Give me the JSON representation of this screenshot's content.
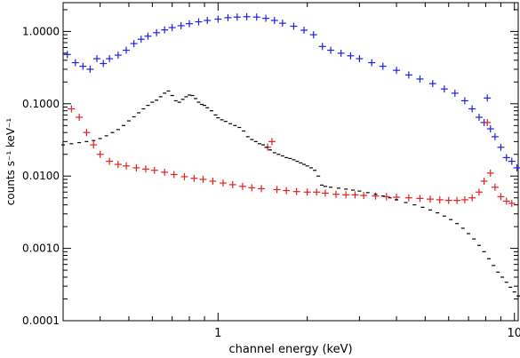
{
  "chart_data": {
    "type": "scatter",
    "title": "",
    "xlabel": "channel energy (keV)",
    "ylabel": "counts s⁻¹ keV⁻¹",
    "x_scale": "log",
    "y_scale": "log",
    "xlim": [
      0.3,
      10.3
    ],
    "ylim": [
      0.0001,
      2.5
    ],
    "x_ticks": [
      {
        "value": 1,
        "label": "1"
      },
      {
        "value": 10,
        "label": "10"
      }
    ],
    "y_ticks": [
      {
        "value": 0.0001,
        "label": "0.0001"
      },
      {
        "value": 0.001,
        "label": "0.0010"
      },
      {
        "value": 0.01,
        "label": "0.0100"
      },
      {
        "value": 0.1,
        "label": "0.1000"
      },
      {
        "value": 1,
        "label": "1.0000"
      }
    ],
    "grid": false,
    "series": [
      {
        "color": "#1f1fe6",
        "style": "crosses",
        "points": [
          [
            0.31,
            0.48
          ],
          [
            0.33,
            0.37
          ],
          [
            0.35,
            0.33
          ],
          [
            0.37,
            0.3
          ],
          [
            0.39,
            0.42
          ],
          [
            0.41,
            0.36
          ],
          [
            0.43,
            0.42
          ],
          [
            0.46,
            0.47
          ],
          [
            0.49,
            0.55
          ],
          [
            0.52,
            0.68
          ],
          [
            0.55,
            0.78
          ],
          [
            0.58,
            0.86
          ],
          [
            0.62,
            0.96
          ],
          [
            0.66,
            1.05
          ],
          [
            0.7,
            1.13
          ],
          [
            0.75,
            1.2
          ],
          [
            0.8,
            1.28
          ],
          [
            0.86,
            1.36
          ],
          [
            0.92,
            1.42
          ],
          [
            1.0,
            1.48
          ],
          [
            1.08,
            1.55
          ],
          [
            1.16,
            1.58
          ],
          [
            1.25,
            1.6
          ],
          [
            1.35,
            1.58
          ],
          [
            1.45,
            1.52
          ],
          [
            1.55,
            1.42
          ],
          [
            1.65,
            1.3
          ],
          [
            1.8,
            1.18
          ],
          [
            1.95,
            1.04
          ],
          [
            2.1,
            0.9
          ],
          [
            2.25,
            0.62
          ],
          [
            2.4,
            0.55
          ],
          [
            2.6,
            0.5
          ],
          [
            2.8,
            0.46
          ],
          [
            3.0,
            0.42
          ],
          [
            3.3,
            0.37
          ],
          [
            3.6,
            0.33
          ],
          [
            4.0,
            0.29
          ],
          [
            4.4,
            0.25
          ],
          [
            4.8,
            0.22
          ],
          [
            5.3,
            0.19
          ],
          [
            5.8,
            0.16
          ],
          [
            6.3,
            0.14
          ],
          [
            6.8,
            0.11
          ],
          [
            7.2,
            0.085
          ],
          [
            7.6,
            0.065
          ],
          [
            7.9,
            0.055
          ],
          [
            8.1,
            0.12
          ],
          [
            8.3,
            0.045
          ],
          [
            8.6,
            0.035
          ],
          [
            9.0,
            0.025
          ],
          [
            9.4,
            0.018
          ],
          [
            9.8,
            0.016
          ],
          [
            10.2,
            0.013
          ]
        ]
      },
      {
        "color": "#e61f1f",
        "style": "crosses",
        "points": [
          [
            0.32,
            0.085
          ],
          [
            0.34,
            0.065
          ],
          [
            0.36,
            0.04
          ],
          [
            0.38,
            0.027
          ],
          [
            0.4,
            0.02
          ],
          [
            0.43,
            0.016
          ],
          [
            0.46,
            0.0145
          ],
          [
            0.49,
            0.0138
          ],
          [
            0.53,
            0.013
          ],
          [
            0.57,
            0.0125
          ],
          [
            0.61,
            0.012
          ],
          [
            0.66,
            0.0113
          ],
          [
            0.71,
            0.0105
          ],
          [
            0.77,
            0.0098
          ],
          [
            0.83,
            0.0093
          ],
          [
            0.89,
            0.009
          ],
          [
            0.96,
            0.0085
          ],
          [
            1.04,
            0.008
          ],
          [
            1.12,
            0.0076
          ],
          [
            1.21,
            0.0072
          ],
          [
            1.3,
            0.0069
          ],
          [
            1.4,
            0.0067
          ],
          [
            1.47,
            0.025
          ],
          [
            1.52,
            0.03
          ],
          [
            1.58,
            0.0065
          ],
          [
            1.7,
            0.0063
          ],
          [
            1.84,
            0.0061
          ],
          [
            2.0,
            0.006
          ],
          [
            2.15,
            0.006
          ],
          [
            2.3,
            0.0058
          ],
          [
            2.5,
            0.0056
          ],
          [
            2.7,
            0.0055
          ],
          [
            2.9,
            0.0055
          ],
          [
            3.1,
            0.0054
          ],
          [
            3.4,
            0.0053
          ],
          [
            3.7,
            0.0052
          ],
          [
            4.0,
            0.0051
          ],
          [
            4.4,
            0.005
          ],
          [
            4.8,
            0.0049
          ],
          [
            5.2,
            0.0048
          ],
          [
            5.6,
            0.0047
          ],
          [
            6.0,
            0.0046
          ],
          [
            6.4,
            0.0046
          ],
          [
            6.8,
            0.0047
          ],
          [
            7.2,
            0.005
          ],
          [
            7.6,
            0.006
          ],
          [
            7.9,
            0.0085
          ],
          [
            8.1,
            0.055
          ],
          [
            8.3,
            0.011
          ],
          [
            8.6,
            0.007
          ],
          [
            9.0,
            0.0052
          ],
          [
            9.4,
            0.0045
          ],
          [
            9.8,
            0.0042
          ]
        ]
      },
      {
        "color": "#000000",
        "style": "dashes",
        "points": [
          [
            0.3,
            0.027
          ],
          [
            0.32,
            0.028
          ],
          [
            0.34,
            0.029
          ],
          [
            0.36,
            0.03
          ],
          [
            0.38,
            0.031
          ],
          [
            0.4,
            0.033
          ],
          [
            0.42,
            0.036
          ],
          [
            0.44,
            0.04
          ],
          [
            0.46,
            0.044
          ],
          [
            0.48,
            0.05
          ],
          [
            0.5,
            0.058
          ],
          [
            0.52,
            0.066
          ],
          [
            0.54,
            0.075
          ],
          [
            0.56,
            0.085
          ],
          [
            0.58,
            0.095
          ],
          [
            0.6,
            0.105
          ],
          [
            0.62,
            0.112
          ],
          [
            0.64,
            0.125
          ],
          [
            0.66,
            0.14
          ],
          [
            0.68,
            0.15
          ],
          [
            0.7,
            0.13
          ],
          [
            0.72,
            0.11
          ],
          [
            0.74,
            0.105
          ],
          [
            0.76,
            0.115
          ],
          [
            0.78,
            0.125
          ],
          [
            0.8,
            0.132
          ],
          [
            0.82,
            0.13
          ],
          [
            0.84,
            0.118
          ],
          [
            0.86,
            0.105
          ],
          [
            0.88,
            0.098
          ],
          [
            0.9,
            0.095
          ],
          [
            0.92,
            0.088
          ],
          [
            0.95,
            0.08
          ],
          [
            0.98,
            0.07
          ],
          [
            1.0,
            0.064
          ],
          [
            1.03,
            0.06
          ],
          [
            1.06,
            0.057
          ],
          [
            1.1,
            0.053
          ],
          [
            1.14,
            0.05
          ],
          [
            1.18,
            0.047
          ],
          [
            1.22,
            0.042
          ],
          [
            1.26,
            0.035
          ],
          [
            1.3,
            0.032
          ],
          [
            1.34,
            0.03
          ],
          [
            1.38,
            0.028
          ],
          [
            1.42,
            0.027
          ],
          [
            1.46,
            0.025
          ],
          [
            1.5,
            0.023
          ],
          [
            1.55,
            0.021
          ],
          [
            1.6,
            0.02
          ],
          [
            1.65,
            0.019
          ],
          [
            1.7,
            0.018
          ],
          [
            1.75,
            0.0175
          ],
          [
            1.8,
            0.0168
          ],
          [
            1.85,
            0.016
          ],
          [
            1.9,
            0.0152
          ],
          [
            1.95,
            0.0145
          ],
          [
            2.0,
            0.0138
          ],
          [
            2.06,
            0.013
          ],
          [
            2.12,
            0.012
          ],
          [
            2.18,
            0.01
          ],
          [
            2.24,
            0.0075
          ],
          [
            2.3,
            0.0072
          ],
          [
            2.4,
            0.007
          ],
          [
            2.55,
            0.0068
          ],
          [
            2.7,
            0.0066
          ],
          [
            2.85,
            0.0064
          ],
          [
            3.0,
            0.0062
          ],
          [
            3.2,
            0.0059
          ],
          [
            3.4,
            0.0056
          ],
          [
            3.6,
            0.0053
          ],
          [
            3.8,
            0.005
          ],
          [
            4.0,
            0.0047
          ],
          [
            4.3,
            0.0043
          ],
          [
            4.6,
            0.004
          ],
          [
            4.9,
            0.0037
          ],
          [
            5.2,
            0.0034
          ],
          [
            5.5,
            0.0031
          ],
          [
            5.8,
            0.0028
          ],
          [
            6.1,
            0.0025
          ],
          [
            6.4,
            0.0022
          ],
          [
            6.7,
            0.0019
          ],
          [
            7.0,
            0.0016
          ],
          [
            7.3,
            0.00135
          ],
          [
            7.6,
            0.0011
          ],
          [
            7.9,
            0.0009
          ],
          [
            8.2,
            0.00072
          ],
          [
            8.5,
            0.00058
          ],
          [
            8.8,
            0.00047
          ],
          [
            9.1,
            0.0004
          ],
          [
            9.4,
            0.00034
          ],
          [
            9.7,
            0.00029
          ],
          [
            10.0,
            0.00025
          ],
          [
            10.3,
            0.00022
          ]
        ]
      }
    ]
  }
}
